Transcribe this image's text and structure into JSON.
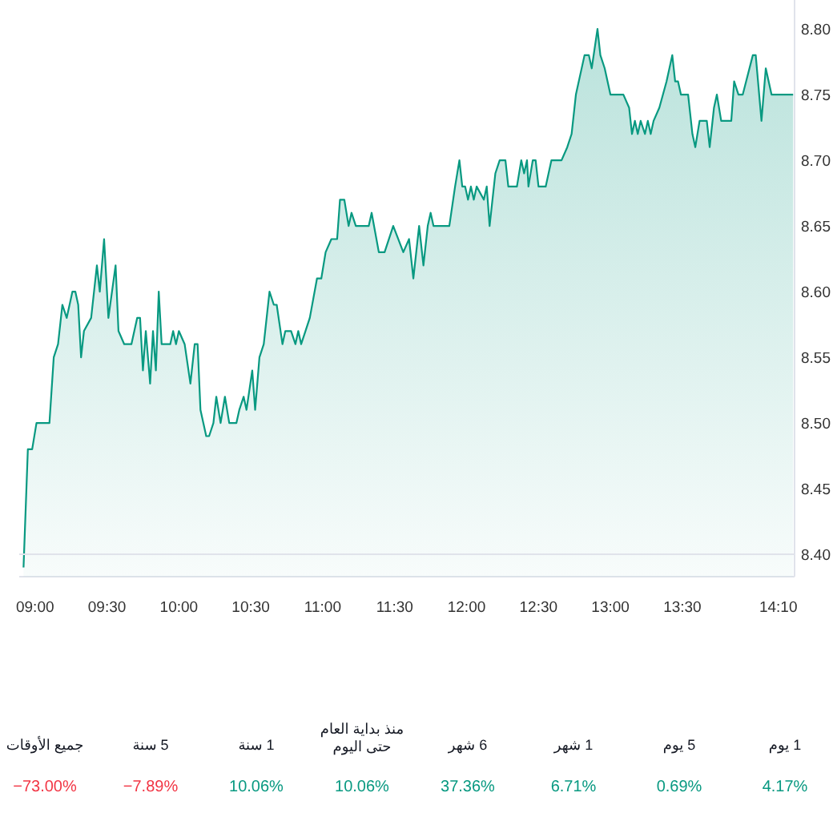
{
  "chart_data": [
    {
      "type": "area",
      "x": [
        8.92,
        8.95,
        8.98,
        9.01,
        9.1,
        9.13,
        9.16,
        9.19,
        9.22,
        9.24,
        9.26,
        9.28,
        9.3,
        9.32,
        9.34,
        9.39,
        9.43,
        9.45,
        9.48,
        9.51,
        9.56,
        9.58,
        9.62,
        9.67,
        9.71,
        9.73,
        9.75,
        9.77,
        9.8,
        9.82,
        9.84,
        9.86,
        9.88,
        9.94,
        9.96,
        9.98,
        10.0,
        10.04,
        10.08,
        10.11,
        10.13,
        10.15,
        10.19,
        10.21,
        10.24,
        10.26,
        10.29,
        10.32,
        10.35,
        10.4,
        10.42,
        10.45,
        10.47,
        10.51,
        10.53,
        10.56,
        10.59,
        10.63,
        10.66,
        10.68,
        10.72,
        10.74,
        10.78,
        10.81,
        10.83,
        10.85,
        10.88,
        10.91,
        10.96,
        10.99,
        11.02,
        11.06,
        11.1,
        11.12,
        11.15,
        11.18,
        11.2,
        11.23,
        11.26,
        11.28,
        11.32,
        11.34,
        11.39,
        11.43,
        11.49,
        11.56,
        11.6,
        11.63,
        11.67,
        11.7,
        11.73,
        11.75,
        11.77,
        11.82,
        11.88,
        11.92,
        11.95,
        11.97,
        11.99,
        12.01,
        12.03,
        12.05,
        12.07,
        12.12,
        12.14,
        12.16,
        12.2,
        12.23,
        12.27,
        12.29,
        12.35,
        12.38,
        12.4,
        12.42,
        12.43,
        12.46,
        12.48,
        12.5,
        12.55,
        12.59,
        12.66,
        12.7,
        12.73,
        12.76,
        12.82,
        12.85,
        12.87,
        12.91,
        12.93,
        12.96,
        13.0,
        13.05,
        13.09,
        13.13,
        13.15,
        13.17,
        13.19,
        13.21,
        13.24,
        13.26,
        13.28,
        13.3,
        13.34,
        13.39,
        13.43,
        13.45,
        13.47,
        13.49,
        13.54,
        13.57,
        13.59,
        13.62,
        13.67,
        13.69,
        13.72,
        13.74,
        13.77,
        13.84,
        13.86,
        13.89,
        13.92,
        13.99,
        14.01,
        14.05,
        14.08,
        14.12,
        14.27
      ],
      "series": [
        {
          "color": "#089981",
          "values": [
            8.39,
            8.48,
            8.48,
            8.5,
            8.5,
            8.55,
            8.56,
            8.59,
            8.58,
            8.59,
            8.6,
            8.6,
            8.59,
            8.55,
            8.57,
            8.58,
            8.62,
            8.6,
            8.64,
            8.58,
            8.62,
            8.57,
            8.56,
            8.56,
            8.58,
            8.58,
            8.54,
            8.57,
            8.53,
            8.57,
            8.54,
            8.6,
            8.56,
            8.56,
            8.57,
            8.56,
            8.57,
            8.56,
            8.53,
            8.56,
            8.56,
            8.51,
            8.49,
            8.49,
            8.5,
            8.52,
            8.5,
            8.52,
            8.5,
            8.5,
            8.51,
            8.52,
            8.51,
            8.54,
            8.51,
            8.55,
            8.56,
            8.6,
            8.59,
            8.59,
            8.56,
            8.57,
            8.57,
            8.56,
            8.57,
            8.56,
            8.57,
            8.58,
            8.61,
            8.61,
            8.63,
            8.64,
            8.64,
            8.67,
            8.67,
            8.65,
            8.66,
            8.65,
            8.65,
            8.65,
            8.65,
            8.66,
            8.63,
            8.63,
            8.65,
            8.63,
            8.64,
            8.61,
            8.65,
            8.62,
            8.65,
            8.66,
            8.65,
            8.65,
            8.65,
            8.68,
            8.7,
            8.68,
            8.68,
            8.67,
            8.68,
            8.67,
            8.68,
            8.67,
            8.68,
            8.65,
            8.69,
            8.7,
            8.7,
            8.68,
            8.68,
            8.7,
            8.69,
            8.7,
            8.68,
            8.7,
            8.7,
            8.68,
            8.68,
            8.7,
            8.7,
            8.71,
            8.72,
            8.75,
            8.78,
            8.78,
            8.77,
            8.8,
            8.78,
            8.77,
            8.75,
            8.75,
            8.75,
            8.74,
            8.72,
            8.73,
            8.72,
            8.73,
            8.72,
            8.73,
            8.72,
            8.73,
            8.74,
            8.76,
            8.78,
            8.76,
            8.76,
            8.75,
            8.75,
            8.72,
            8.71,
            8.73,
            8.73,
            8.71,
            8.74,
            8.75,
            8.73,
            8.73,
            8.76,
            8.75,
            8.75,
            8.78,
            8.78,
            8.73,
            8.77,
            8.75,
            8.75
          ]
        }
      ],
      "xlim": [
        8.89,
        14.28
      ],
      "ylim": [
        8.383,
        8.822
      ],
      "xticks": [
        {
          "value": 9,
          "label": "09:00"
        },
        {
          "value": 9.5,
          "label": "09:30"
        },
        {
          "value": 10,
          "label": "10:00"
        },
        {
          "value": 10.5,
          "label": "10:30"
        },
        {
          "value": 11,
          "label": "11:00"
        },
        {
          "value": 11.5,
          "label": "11:30"
        },
        {
          "value": 12,
          "label": "12:00"
        },
        {
          "value": 12.5,
          "label": "12:30"
        },
        {
          "value": 13,
          "label": "13:00"
        },
        {
          "value": 13.5,
          "label": "13:30"
        },
        {
          "value": 14.167,
          "label": "14:10"
        }
      ],
      "yticks": [
        {
          "value": 8.4,
          "label": "8.40"
        },
        {
          "value": 8.45,
          "label": "8.45"
        },
        {
          "value": 8.5,
          "label": "8.50"
        },
        {
          "value": 8.55,
          "label": "8.55"
        },
        {
          "value": 8.6,
          "label": "8.60"
        },
        {
          "value": 8.65,
          "label": "8.65"
        },
        {
          "value": 8.7,
          "label": "8.70"
        },
        {
          "value": 8.75,
          "label": "8.75"
        },
        {
          "value": 8.8,
          "label": "8.80"
        }
      ],
      "ref_lines": [
        {
          "axis": "y",
          "value": 8.4,
          "color": "#e0e3eb"
        }
      ]
    },
    {
      "type": "other",
      "categories": [
        "جميع الأوقات",
        "5 سنة",
        "1 سنة",
        "منذ بداية العام حتى اليوم",
        "6 شهر",
        "1 شهر",
        "5 يوم",
        "1 يوم"
      ],
      "value_labels": [
        "−73.00%",
        "−7.89%",
        "10.06%",
        "10.06%",
        "37.36%",
        "6.71%",
        "0.69%",
        "4.17%"
      ],
      "colors": [
        "#f23645",
        "#f23645",
        "#089981",
        "#089981",
        "#089981",
        "#089981",
        "#089981",
        "#089981"
      ]
    }
  ]
}
